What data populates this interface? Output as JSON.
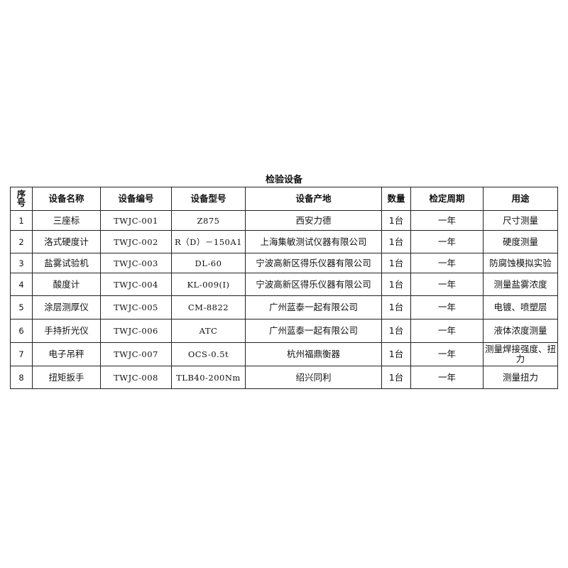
{
  "title": "检验设备",
  "columns": [
    "序号",
    "设备名称",
    "设备编号",
    "设备型号",
    "设备产地",
    "数量",
    "检定周期",
    "用途"
  ],
  "rows": [
    [
      "1",
      "三座标",
      "TWJC-001",
      "Z875",
      "西安力德",
      "1台",
      "一年",
      "尺寸测量"
    ],
    [
      "2",
      "洛式硬度计",
      "TWJC-002",
      "R（D）－150A1",
      "上海集敏测试仪器有限公司",
      "1台",
      "一年",
      "硬度测量"
    ],
    [
      "3",
      "盐雾试验机",
      "TWJC-003",
      "DL-60",
      "宁波高新区得乐仪器有限公司",
      "1台",
      "一年",
      "防腐蚀模拟实验"
    ],
    [
      "4",
      "酸度计",
      "TWJC-004",
      "KL-009(Ⅰ)",
      "宁波高新区得乐仪器有限公司",
      "1台",
      "一年",
      "测量盐雾浓度"
    ],
    [
      "5",
      "涂层测厚仪",
      "TWJC-005",
      "CM-8822",
      "广州蓝泰一起有限公司",
      "1台",
      "一年",
      "电镀、喷塑层"
    ],
    [
      "6",
      "手持折光仪",
      "TWJC-006",
      "ATC",
      "广州蓝泰一起有限公司",
      "1台",
      "一年",
      "液体浓度测量"
    ],
    [
      "7",
      "电子吊秤",
      "TWJC-007",
      "OCS-0.5t",
      "杭州福鼎衡器",
      "1台",
      "一年",
      "测量焊接强度、扭力"
    ],
    [
      "8",
      "扭矩扳手",
      "TWJC-008",
      "TLB40-200Nm",
      "绍兴同利",
      "1台",
      "一年",
      "测量扭力"
    ]
  ]
}
